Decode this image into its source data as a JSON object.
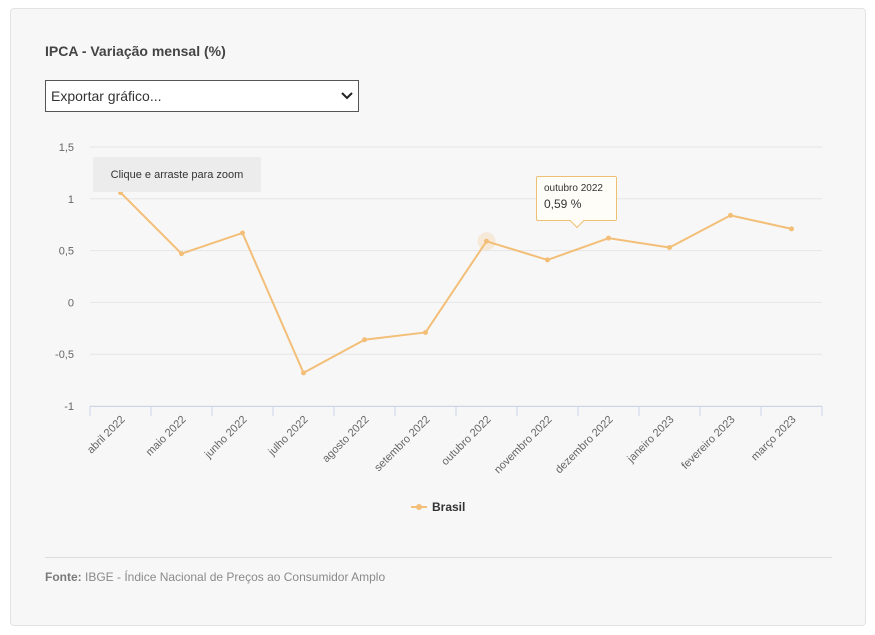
{
  "header": {
    "title": "IPCA - Variação mensal (%)"
  },
  "export_select": {
    "selected": "Exportar gráfico...",
    "chevron_icon": "chevron-down-icon"
  },
  "chart_data": {
    "type": "line",
    "title": "IPCA - Variação mensal (%)",
    "categories": [
      "abril 2022",
      "maio 2022",
      "junho 2022",
      "julho 2022",
      "agosto 2022",
      "setembro 2022",
      "outubro 2022",
      "novembro 2022",
      "dezembro 2022",
      "janeiro 2023",
      "fevereiro 2023",
      "março 2023"
    ],
    "series": [
      {
        "name": "Brasil",
        "color": "#f3bf78",
        "values": [
          1.06,
          0.47,
          0.67,
          -0.68,
          -0.36,
          -0.29,
          0.59,
          0.41,
          0.62,
          0.53,
          0.84,
          0.71
        ]
      }
    ],
    "ylim": [
      -1,
      1.5
    ],
    "yticks": [
      "1,5",
      "1",
      "0,5",
      "0",
      "-0,5",
      "-1"
    ],
    "ytick_values": [
      1.5,
      1,
      0.5,
      0,
      -0.5,
      -1
    ],
    "grid": true,
    "legend": "bottom-center",
    "highlight_index": 6
  },
  "zoom_hint": "Clique e arraste para zoom",
  "tooltip": {
    "category": "outubro 2022",
    "value": "0,59 %"
  },
  "source": {
    "label": "Fonte:",
    "text": "IBGE - Índice Nacional de Preços ao Consumidor Amplo"
  }
}
